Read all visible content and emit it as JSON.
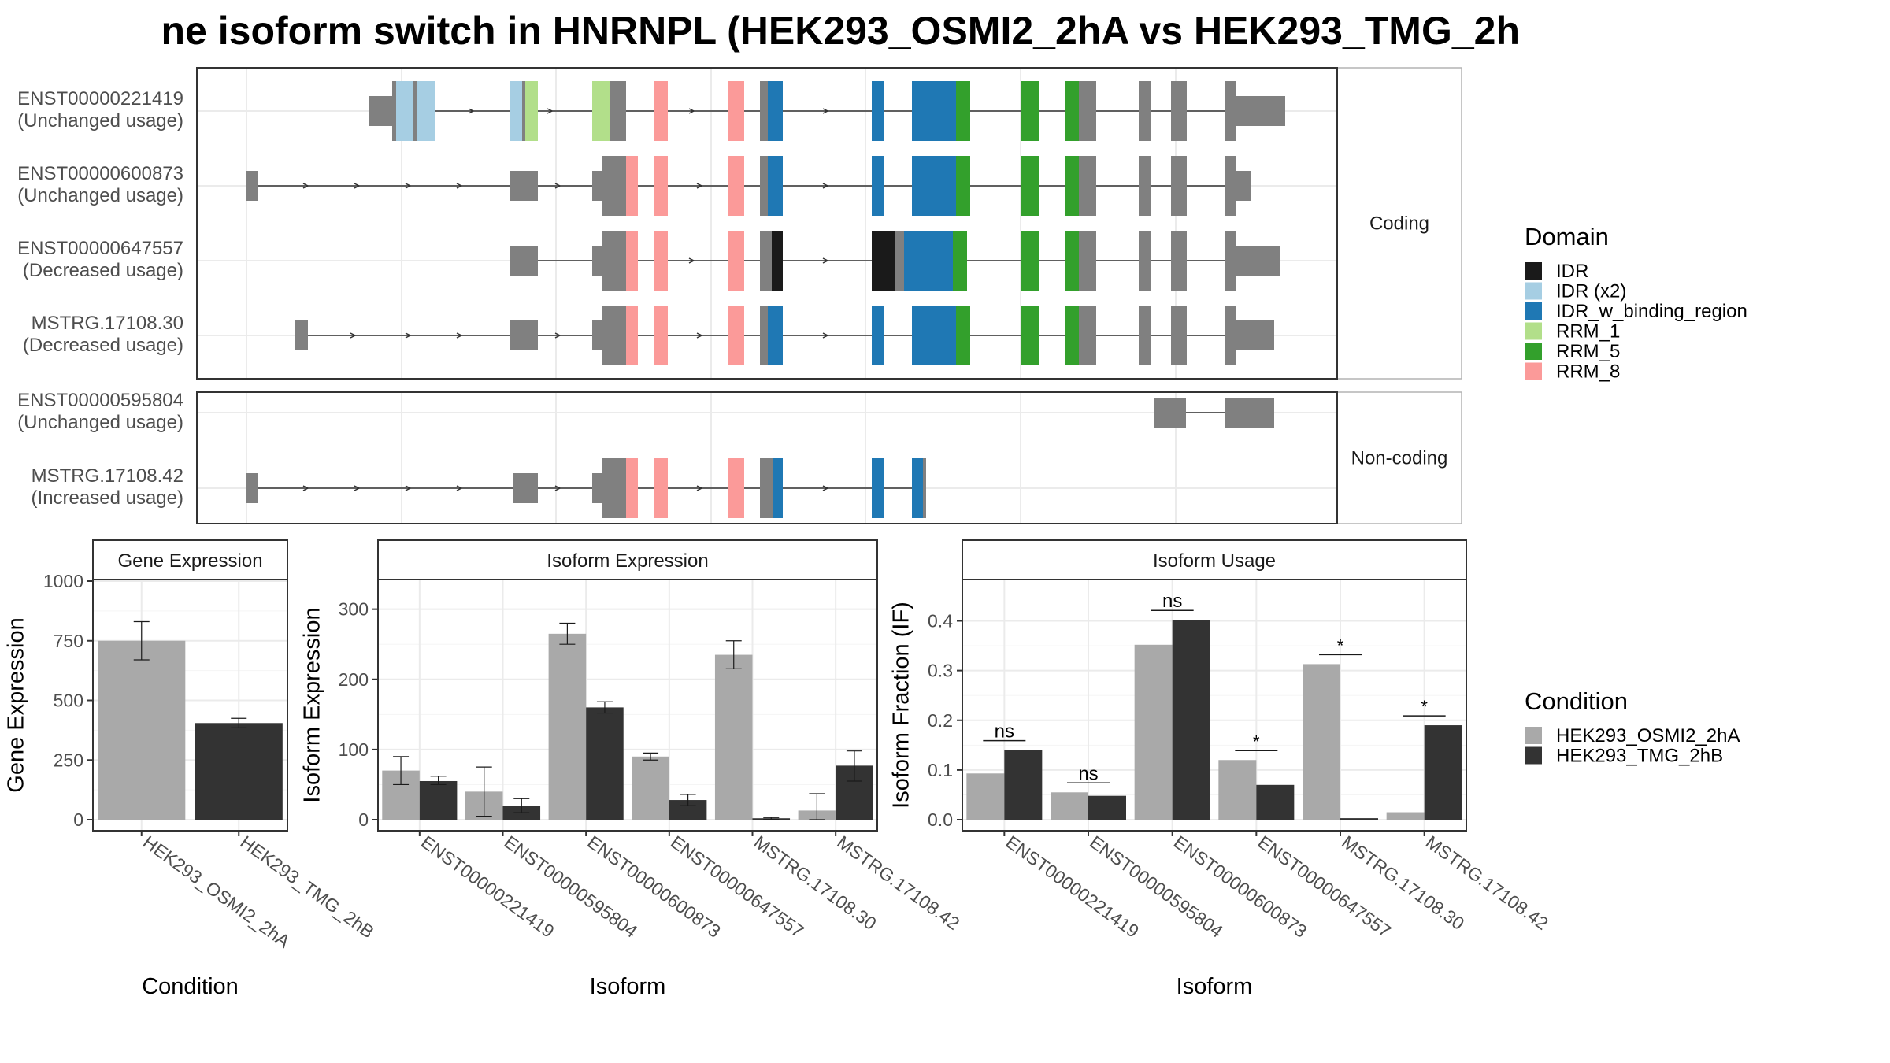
{
  "title": "ne isoform switch in HNRNPL (HEK293_OSMI2_2hA vs HEK293_TMG_2h",
  "colors": {
    "exon": "#808080",
    "osmi": "#a9a9a9",
    "tmg": "#333333",
    "panel_border": "#333333",
    "strip_bg": "#ffffff",
    "grid": "#ebebeb"
  },
  "structure": {
    "groups": [
      {
        "label": "Coding",
        "isoforms": [
          {
            "name": "ENST00000221419",
            "usage": "(Unchanged usage)"
          },
          {
            "name": "ENST00000600873",
            "usage": "(Unchanged usage)"
          },
          {
            "name": "ENST00000647557",
            "usage": "(Decreased usage)"
          },
          {
            "name": "MSTRG.17108.30",
            "usage": "(Decreased usage)"
          }
        ]
      },
      {
        "label": "Non-coding",
        "isoforms": [
          {
            "name": "ENST00000595804",
            "usage": "(Unchanged usage)"
          },
          {
            "name": "MSTRG.17108.42",
            "usage": "(Increased usage)"
          }
        ]
      }
    ]
  },
  "legend_domain": {
    "title": "Domain",
    "items": [
      {
        "label": "IDR",
        "color": "#1a1a1a"
      },
      {
        "label": "IDR (x2)",
        "color": "#a6cee3"
      },
      {
        "label": "IDR_w_binding_region",
        "color": "#1f78b4"
      },
      {
        "label": "RRM_1",
        "color": "#b2df8a"
      },
      {
        "label": "RRM_5",
        "color": "#33a02c"
      },
      {
        "label": "RRM_8",
        "color": "#fb9a99"
      }
    ]
  },
  "legend_condition": {
    "title": "Condition",
    "items": [
      {
        "label": "HEK293_OSMI2_2hA",
        "color": "#a9a9a9"
      },
      {
        "label": "HEK293_TMG_2hB",
        "color": "#333333"
      }
    ]
  },
  "chart_data": [
    {
      "type": "bar",
      "title": "Gene Expression",
      "xlabel": "Condition",
      "ylabel": "Gene Expression",
      "categories": [
        "HEK293_OSMI2_2hA",
        "HEK293_TMG_2hB"
      ],
      "values": [
        750,
        405
      ],
      "error_low": [
        670,
        385
      ],
      "error_high": [
        830,
        425
      ],
      "ylim": [
        0,
        1000
      ],
      "yticks": [
        "0",
        "250",
        "500",
        "750",
        "1000"
      ],
      "ytick_values": [
        0,
        250,
        500,
        750,
        1000
      ]
    },
    {
      "type": "bar",
      "title": "Isoform Expression",
      "xlabel": "Isoform",
      "ylabel": "Isoform Expression",
      "categories": [
        "ENST00000221419",
        "ENST00000595804",
        "ENST00000600873",
        "ENST00000647557",
        "MSTRG.17108.30",
        "MSTRG.17108.42"
      ],
      "series": [
        {
          "name": "HEK293_OSMI2_2hA",
          "values": [
            70,
            40,
            265,
            90,
            235,
            13
          ],
          "error_low": [
            50,
            5,
            250,
            85,
            215,
            0
          ],
          "error_high": [
            90,
            75,
            280,
            95,
            255,
            37
          ]
        },
        {
          "name": "HEK293_TMG_2hB",
          "values": [
            55,
            20,
            160,
            28,
            2,
            77
          ],
          "error_low": [
            50,
            10,
            152,
            20,
            1,
            55
          ],
          "error_high": [
            62,
            30,
            168,
            36,
            3,
            98
          ]
        }
      ],
      "ylim": [
        0,
        340
      ],
      "yticks": [
        "0",
        "100",
        "200",
        "300"
      ],
      "ytick_values": [
        0,
        100,
        200,
        300
      ]
    },
    {
      "type": "bar",
      "title": "Isoform Usage",
      "xlabel": "Isoform",
      "ylabel": "Isoform Fraction (IF)",
      "categories": [
        "ENST00000221419",
        "ENST00000595804",
        "ENST00000600873",
        "ENST00000647557",
        "MSTRG.17108.30",
        "MSTRG.17108.42"
      ],
      "series": [
        {
          "name": "HEK293_OSMI2_2hA",
          "values": [
            0.093,
            0.055,
            0.352,
            0.12,
            0.313,
            0.015
          ]
        },
        {
          "name": "HEK293_TMG_2hB",
          "values": [
            0.14,
            0.048,
            0.402,
            0.07,
            0.003,
            0.19
          ]
        }
      ],
      "annotations": [
        "ns",
        "ns",
        "ns",
        "*",
        "*",
        "*"
      ],
      "ylim": [
        0,
        0.48
      ],
      "yticks": [
        "0.0",
        "0.1",
        "0.2",
        "0.3",
        "0.4"
      ],
      "ytick_values": [
        0,
        0.1,
        0.2,
        0.3,
        0.4
      ]
    }
  ]
}
